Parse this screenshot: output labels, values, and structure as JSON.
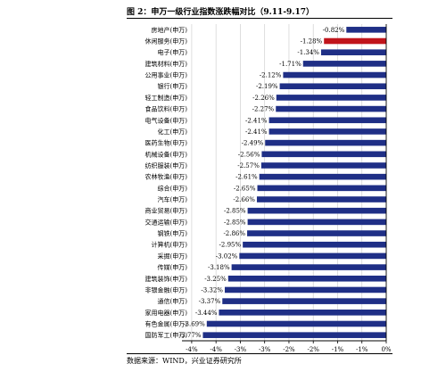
{
  "title": "图 2：申万一级行业指数涨跌幅对比（9.11-9.17）",
  "source": "数据来源：WIND，兴业证券研究所",
  "colors": {
    "bar": "#1f2f86",
    "highlight": "#c0141b",
    "grid": "#d0d0d0",
    "axis": "#000000"
  },
  "chart_data": {
    "type": "bar",
    "orientation": "horizontal",
    "title": "",
    "xlabel": "",
    "ylabel": "",
    "xlim": [
      -4.2,
      0
    ],
    "xticks": [
      -4,
      -3.5,
      -3,
      -2.5,
      -2,
      -1.5,
      -1,
      -0.5,
      0
    ],
    "xtick_labels": [
      "-4%",
      "-4%",
      "-3%",
      "-3%",
      "-2%",
      "-2%",
      "-1%",
      "-1%",
      "0%"
    ],
    "grid": true,
    "highlight_category": "休闲服务(申万)",
    "categories": [
      "房地产(申万)",
      "休闲服务(申万)",
      "电子(申万)",
      "建筑材料(申万)",
      "公用事业(申万)",
      "银行(申万)",
      "轻工制造(申万)",
      "食品饮料(申万)",
      "电气设备(申万)",
      "化工(申万)",
      "医药生物(申万)",
      "机械设备(申万)",
      "纺织服装(申万)",
      "农林牧渔(申万)",
      "综合(申万)",
      "汽车(申万)",
      "商业贸易(申万)",
      "交通运输(申万)",
      "钢铁(申万)",
      "计算机(申万)",
      "采掘(申万)",
      "传媒(申万)",
      "建筑装饰(申万)",
      "非银金融(申万)",
      "通信(申万)",
      "家用电器(申万)",
      "有色金属(申万)",
      "国防军工(申万)"
    ],
    "values": [
      -0.82,
      -1.28,
      -1.34,
      -1.71,
      -2.12,
      -2.19,
      -2.26,
      -2.27,
      -2.41,
      -2.41,
      -2.49,
      -2.56,
      -2.57,
      -2.61,
      -2.65,
      -2.66,
      -2.85,
      -2.85,
      -2.86,
      -2.95,
      -3.02,
      -3.18,
      -3.25,
      -3.32,
      -3.37,
      -3.44,
      -3.69,
      -3.77
    ],
    "value_labels": [
      "-0.82%",
      "-1.28%",
      "-1.34%",
      "-1.71%",
      "-2.12%",
      "-2.19%",
      "-2.26%",
      "-2.27%",
      "-2.41%",
      "-2.41%",
      "-2.49%",
      "-2.56%",
      "-2.57%",
      "-2.61%",
      "-2.65%",
      "-2.66%",
      "-2.85%",
      "-2.85%",
      "-2.86%",
      "-2.95%",
      "-3.02%",
      "-3.18%",
      "-3.25%",
      "-3.32%",
      "-3.37%",
      "-3.44%",
      "-3.69%",
      "-3.77%"
    ]
  }
}
